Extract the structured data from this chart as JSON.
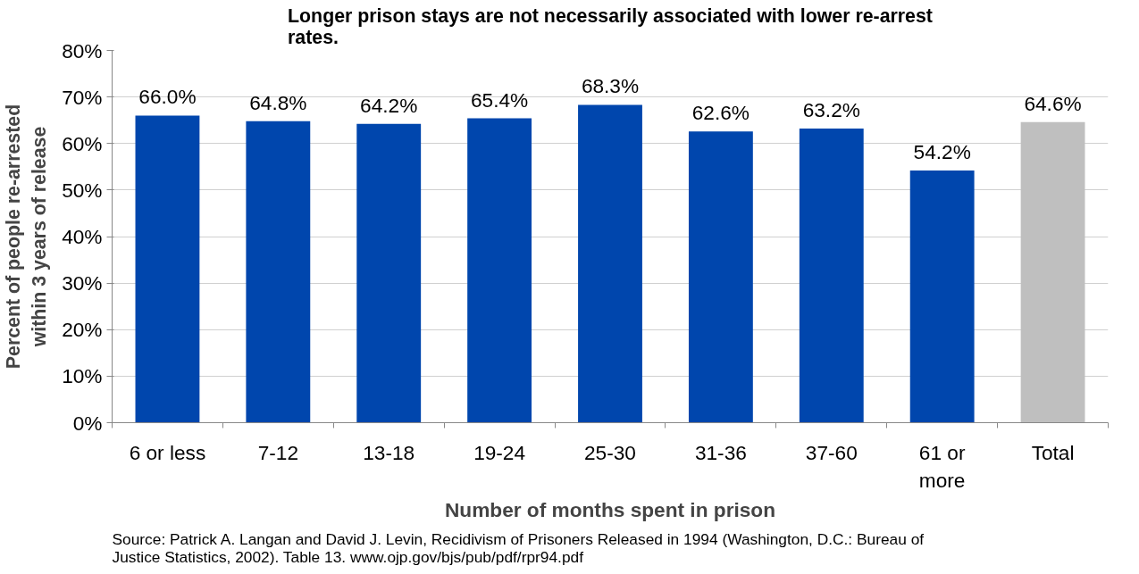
{
  "chart_data": {
    "type": "bar",
    "title": "Longer prison stays are not necessarily associated with lower re-arrest rates.",
    "xlabel": "Number of months spent in prison",
    "ylabel": "Percent of people re-arrested within 3 years of release",
    "categories": [
      "6 or less",
      "7-12",
      "13-18",
      "19-24",
      "25-30",
      "31-36",
      "37-60",
      "61 or more",
      "Total"
    ],
    "values": [
      66.0,
      64.8,
      64.2,
      65.4,
      68.3,
      62.6,
      63.2,
      54.2,
      64.6
    ],
    "colors": [
      "#0046ad",
      "#0046ad",
      "#0046ad",
      "#0046ad",
      "#0046ad",
      "#0046ad",
      "#0046ad",
      "#0046ad",
      "#bfbfbf"
    ],
    "value_labels": [
      "66.0%",
      "64.8%",
      "64.2%",
      "65.4%",
      "68.3%",
      "62.6%",
      "63.2%",
      "54.2%",
      "64.6%"
    ],
    "ylim": [
      0,
      80
    ],
    "yticks": [
      {
        "value": 0,
        "label": "0%"
      },
      {
        "value": 10,
        "label": "10%"
      },
      {
        "value": 20,
        "label": "20%"
      },
      {
        "value": 30,
        "label": "30%"
      },
      {
        "value": 40,
        "label": "40%"
      },
      {
        "value": 50,
        "label": "50%"
      },
      {
        "value": 60,
        "label": "60%"
      },
      {
        "value": 70,
        "label": "70%"
      },
      {
        "value": 80,
        "label": "80%"
      }
    ],
    "grid": "y",
    "annotations": [
      "Source: Patrick A. Langan and David J. Levin, Recidivism of Prisoners Released in 1994 (Washington, D.C.: Bureau of Justice Statistics, 2002). Table 13. www.ojp.gov/bjs/pub/pdf/rpr94.pdf"
    ]
  }
}
